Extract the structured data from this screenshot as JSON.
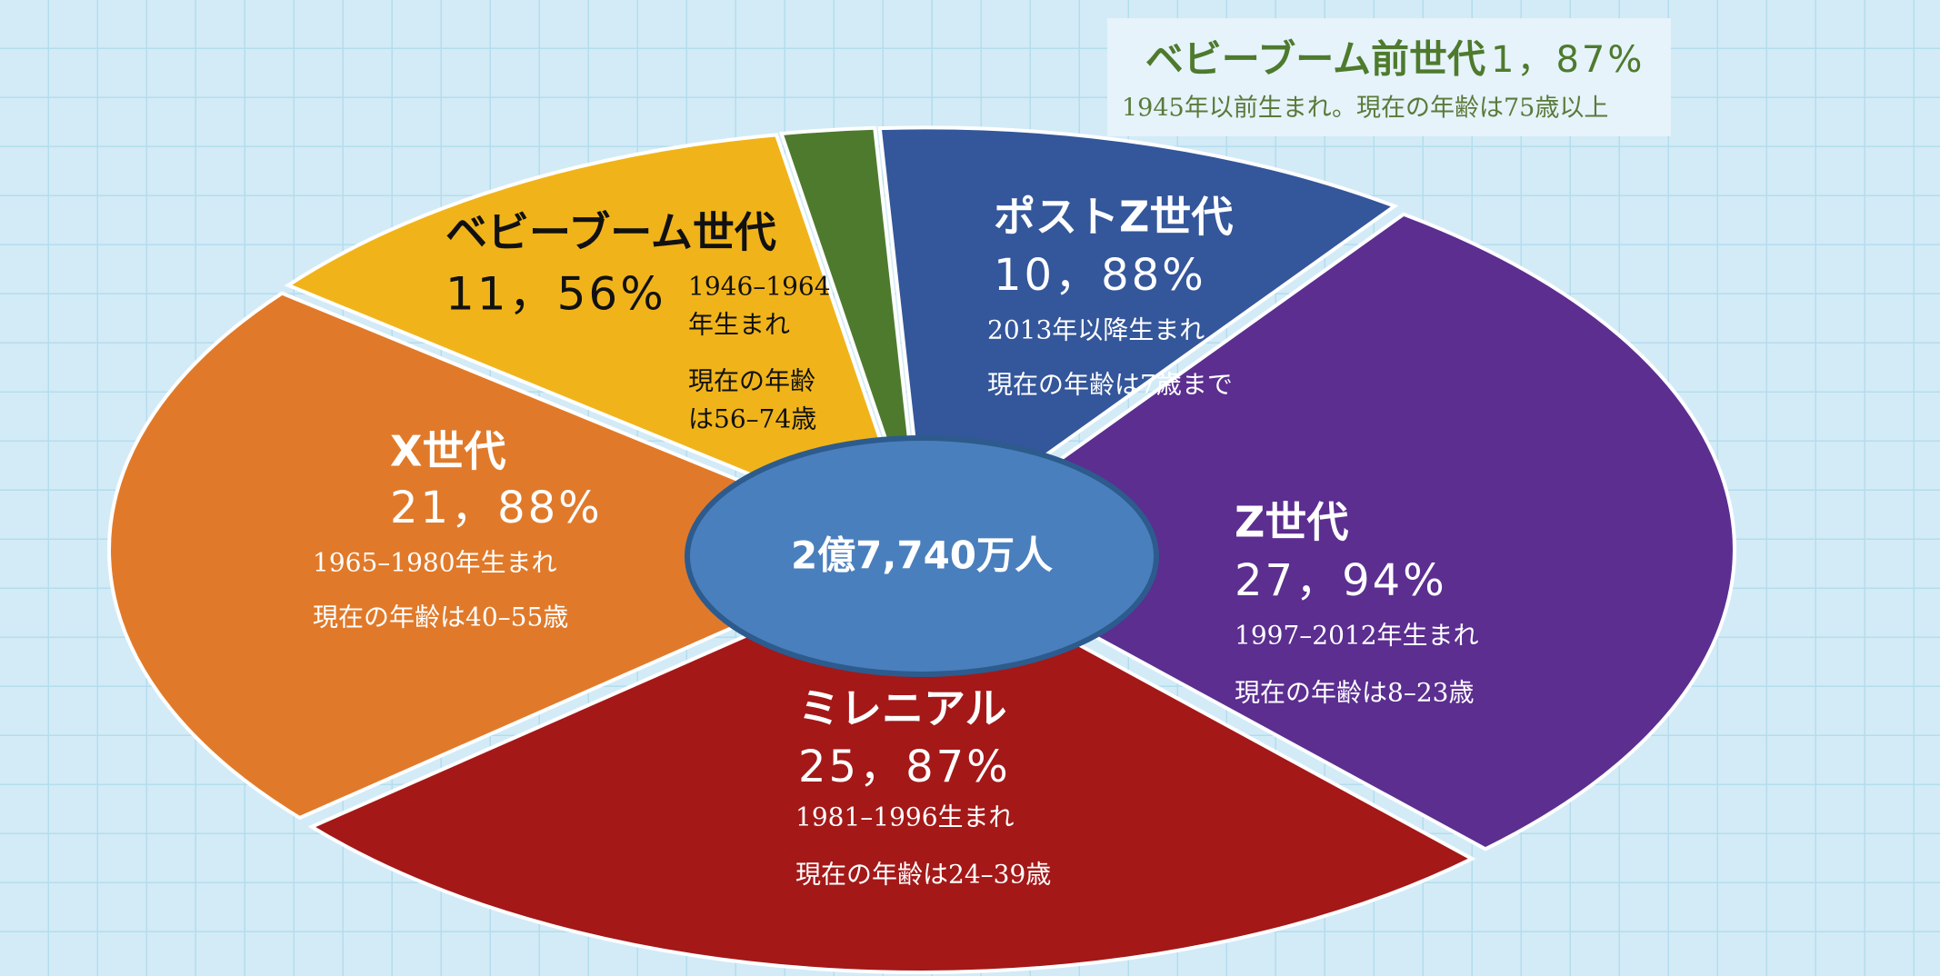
{
  "chart_data": {
    "type": "pie",
    "center_label": "2億7,740万人",
    "categories": [
      "ベビーブーム前世代",
      "ポストZ世代",
      "Z世代",
      "ミレニアル",
      "X世代",
      "ベビーブーム世代"
    ],
    "values": [
      1.87,
      10.88,
      27.94,
      25.87,
      21.88,
      11.56
    ],
    "value_labels": [
      "1，87%",
      "10，88%",
      "27，94%",
      "25，87%",
      "21，88%",
      "11，56%"
    ],
    "colors": [
      "#4e7a2e",
      "#34569a",
      "#5b2e90",
      "#a41818",
      "#e07a2a",
      "#f0b41a"
    ],
    "descriptions": [
      [
        "1945年以前生まれ。現在の年齢は75歳以上"
      ],
      [
        "2013年以降生まれ",
        "現在の年齢は7歳まで"
      ],
      [
        "1997–2012年生まれ",
        "現在の年齢は8–23歳"
      ],
      [
        "1981–1996生まれ",
        "現在の年齢は24–39歳"
      ],
      [
        "1965–1980年生まれ",
        "現在の年齢は40–55歳"
      ],
      [
        "1946–1964",
        "年生まれ",
        "現在の年齢",
        "は56–74歳"
      ]
    ]
  }
}
